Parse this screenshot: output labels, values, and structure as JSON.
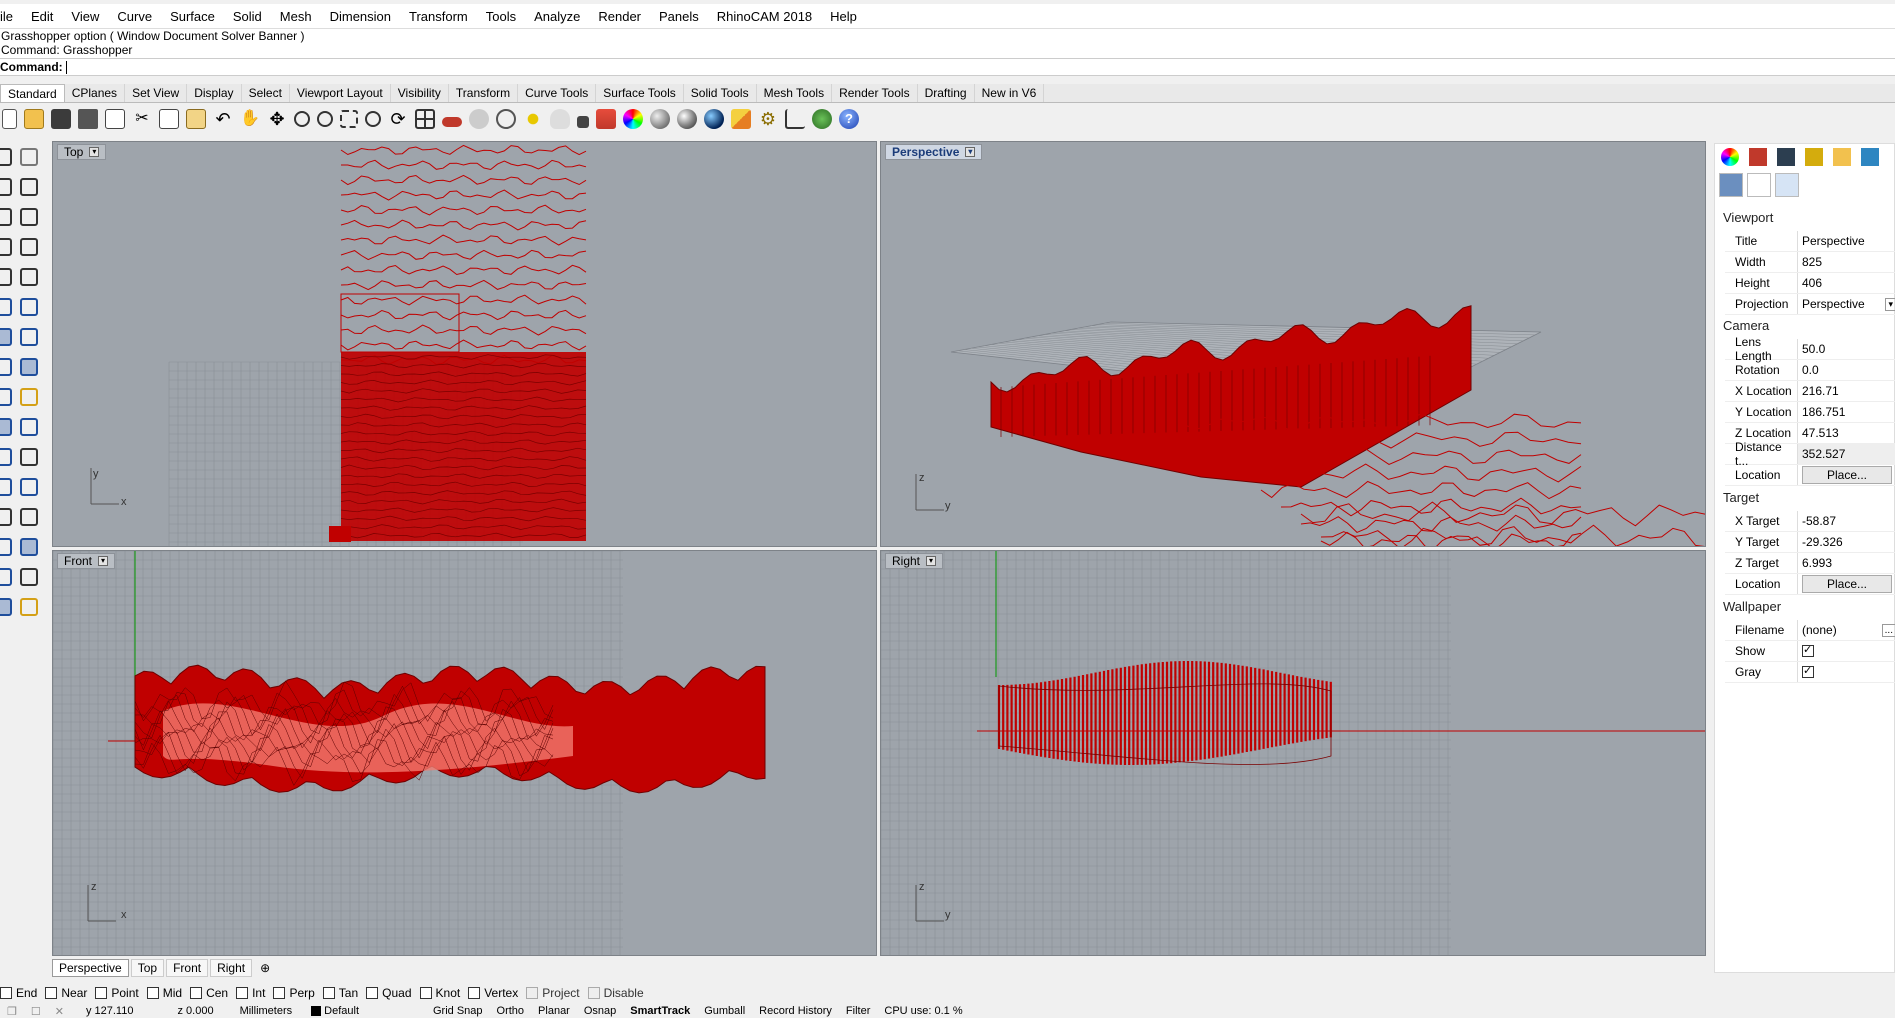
{
  "menu": [
    "ile",
    "Edit",
    "View",
    "Curve",
    "Surface",
    "Solid",
    "Mesh",
    "Dimension",
    "Transform",
    "Tools",
    "Analyze",
    "Render",
    "Panels",
    "RhinoCAM 2018",
    "Help"
  ],
  "command_history": [
    "Grasshopper option ( Window  Document  Solver  Banner )",
    "Command: Grasshopper"
  ],
  "command_prompt": "Command:",
  "toolbar_tabs": [
    "Standard",
    "CPlanes",
    "Set View",
    "Display",
    "Select",
    "Viewport Layout",
    "Visibility",
    "Transform",
    "Curve Tools",
    "Surface Tools",
    "Solid Tools",
    "Mesh Tools",
    "Render Tools",
    "Drafting",
    "New in V6"
  ],
  "viewports": {
    "top": {
      "label": "Top",
      "axis_x": "x",
      "axis_y": "y"
    },
    "perspective": {
      "label": "Perspective",
      "axis_y": "y",
      "axis_z": "z"
    },
    "front": {
      "label": "Front",
      "axis_x": "x",
      "axis_z": "z"
    },
    "right": {
      "label": "Right",
      "axis_y": "y",
      "axis_z": "z"
    }
  },
  "viewport_tabs": [
    "Perspective",
    "Top",
    "Front",
    "Right"
  ],
  "viewport_tab_add": "⊕",
  "osnaps": [
    {
      "label": "End",
      "checked": false
    },
    {
      "label": "Near",
      "checked": false
    },
    {
      "label": "Point",
      "checked": false
    },
    {
      "label": "Mid",
      "checked": false
    },
    {
      "label": "Cen",
      "checked": false
    },
    {
      "label": "Int",
      "checked": false
    },
    {
      "label": "Perp",
      "checked": false
    },
    {
      "label": "Tan",
      "checked": false
    },
    {
      "label": "Quad",
      "checked": false
    },
    {
      "label": "Knot",
      "checked": false
    },
    {
      "label": "Vertex",
      "checked": false
    },
    {
      "label": "Project",
      "checked": false,
      "disabled": true
    },
    {
      "label": "Disable",
      "checked": false,
      "disabled": true
    }
  ],
  "status": {
    "y": "y 127.110",
    "z": "z 0.000",
    "units": "Millimeters",
    "layer": "Default",
    "grid_snap": "Grid Snap",
    "ortho": "Ortho",
    "planar": "Planar",
    "osnap": "Osnap",
    "smarttrack": "SmartTrack",
    "gumball": "Gumball",
    "record_history": "Record History",
    "filter": "Filter",
    "cpu": "CPU use: 0.1 %"
  },
  "panel": {
    "viewport_title": "Viewport",
    "title_k": "Title",
    "title_v": "Perspective",
    "width_k": "Width",
    "width_v": "825",
    "height_k": "Height",
    "height_v": "406",
    "projection_k": "Projection",
    "projection_v": "Perspective",
    "camera_title": "Camera",
    "lens_k": "Lens Length",
    "lens_v": "50.0",
    "rotation_k": "Rotation",
    "rotation_v": "0.0",
    "xloc_k": "X Location",
    "xloc_v": "216.71",
    "yloc_k": "Y Location",
    "yloc_v": "186.751",
    "zloc_k": "Z Location",
    "zloc_v": "47.513",
    "dist_k": "Distance t...",
    "dist_v": "352.527",
    "loc_k": "Location",
    "place": "Place...",
    "target_title": "Target",
    "xt_k": "X Target",
    "xt_v": "-58.87",
    "yt_k": "Y Target",
    "yt_v": "-29.326",
    "zt_k": "Z Target",
    "zt_v": "6.993",
    "wallpaper_title": "Wallpaper",
    "filename_k": "Filename",
    "filename_v": "(none)",
    "show_k": "Show",
    "show_checked": true,
    "gray_k": "Gray",
    "gray_checked": true,
    "ellipsis": "..."
  },
  "colors": {
    "model_red": "#c00000",
    "viewport_bg": "#9ea4ab",
    "grid": "#8a9097",
    "axis_green": "#1d9a1d"
  }
}
